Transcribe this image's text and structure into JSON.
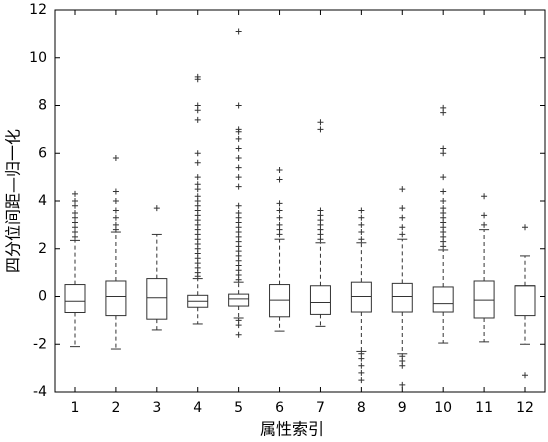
{
  "chart_data": {
    "type": "box",
    "x_label": "属性索引",
    "y_label": "四分位间距—归一化",
    "categories": [
      "1",
      "2",
      "3",
      "4",
      "5",
      "6",
      "7",
      "8",
      "9",
      "10",
      "11",
      "12"
    ],
    "ylim": [
      -4,
      12
    ],
    "yticks": [
      -4,
      -2,
      0,
      2,
      4,
      6,
      8,
      10,
      12
    ],
    "color": "#333333",
    "boxes": [
      {
        "q1": -0.67,
        "median": -0.2,
        "q3": 0.5,
        "whisker_low": -2.1,
        "whisker_high": 2.35,
        "outliers": [
          2.5,
          2.7,
          2.9,
          3.1,
          3.3,
          3.5,
          3.8,
          4.0,
          4.3
        ]
      },
      {
        "q1": -0.8,
        "median": 0,
        "q3": 0.65,
        "whisker_low": -2.2,
        "whisker_high": 2.7,
        "outliers": [
          2.8,
          3.0,
          3.3,
          3.6,
          4.0,
          4.4,
          5.8
        ]
      },
      {
        "q1": -0.95,
        "median": -0.05,
        "q3": 0.75,
        "whisker_low": -1.4,
        "whisker_high": 2.6,
        "outliers": [
          3.7
        ]
      },
      {
        "q1": -0.45,
        "median": -0.2,
        "q3": 0.05,
        "whisker_low": -1.15,
        "whisker_high": 0.75,
        "outliers": [
          0.85,
          1.0,
          1.2,
          1.4,
          1.6,
          1.8,
          2.0,
          2.2,
          2.4,
          2.6,
          2.8,
          3.0,
          3.2,
          3.4,
          3.6,
          3.8,
          4.0,
          4.2,
          4.5,
          4.7,
          5.0,
          5.6,
          6.0,
          7.4,
          7.8,
          8.0,
          9.1,
          9.2
        ]
      },
      {
        "q1": -0.4,
        "median": -0.1,
        "q3": 0.1,
        "whisker_low": -0.9,
        "whisker_high": 0.6,
        "outliers": [
          0.7,
          0.9,
          1.1,
          1.3,
          1.5,
          1.7,
          1.9,
          2.1,
          2.3,
          2.5,
          2.7,
          2.9,
          3.1,
          3.3,
          3.5,
          3.8,
          4.6,
          5.0,
          5.4,
          5.8,
          6.2,
          6.6,
          6.9,
          7.0,
          8.0,
          11.1,
          -1.0,
          -1.2,
          -1.6
        ]
      },
      {
        "q1": -0.85,
        "median": -0.15,
        "q3": 0.5,
        "whisker_low": -1.45,
        "whisker_high": 2.4,
        "outliers": [
          2.6,
          2.8,
          3.0,
          3.3,
          3.6,
          3.9,
          4.9,
          5.3
        ]
      },
      {
        "q1": -0.75,
        "median": -0.25,
        "q3": 0.45,
        "whisker_low": -1.25,
        "whisker_high": 2.25,
        "outliers": [
          2.4,
          2.6,
          2.8,
          3.0,
          3.2,
          3.4,
          3.6,
          7.0,
          7.3
        ]
      },
      {
        "q1": -0.65,
        "median": 0,
        "q3": 0.6,
        "whisker_low": -2.3,
        "whisker_high": 2.25,
        "outliers": [
          2.4,
          2.7,
          3.0,
          3.3,
          3.6,
          -2.4,
          -2.6,
          -2.9,
          -3.2,
          -3.5
        ]
      },
      {
        "q1": -0.65,
        "median": 0,
        "q3": 0.55,
        "whisker_low": -2.4,
        "whisker_high": 2.4,
        "outliers": [
          2.6,
          2.9,
          3.3,
          3.7,
          4.5,
          -2.5,
          -2.7,
          -2.9,
          -3.7
        ]
      },
      {
        "q1": -0.65,
        "median": -0.3,
        "q3": 0.4,
        "whisker_low": -1.95,
        "whisker_high": 1.95,
        "outliers": [
          2.1,
          2.3,
          2.5,
          2.7,
          2.9,
          3.1,
          3.3,
          3.5,
          3.7,
          4.0,
          4.4,
          5.0,
          6.0,
          6.2,
          7.7,
          7.9
        ]
      },
      {
        "q1": -0.9,
        "median": -0.15,
        "q3": 0.65,
        "whisker_low": -1.9,
        "whisker_high": 2.8,
        "outliers": [
          3.0,
          3.4,
          4.2
        ]
      },
      {
        "q1": -0.8,
        "median": 0.45,
        "q3": 0.45,
        "whisker_low": -2.0,
        "whisker_high": 1.7,
        "outliers": [
          2.9,
          -3.3
        ]
      }
    ]
  }
}
